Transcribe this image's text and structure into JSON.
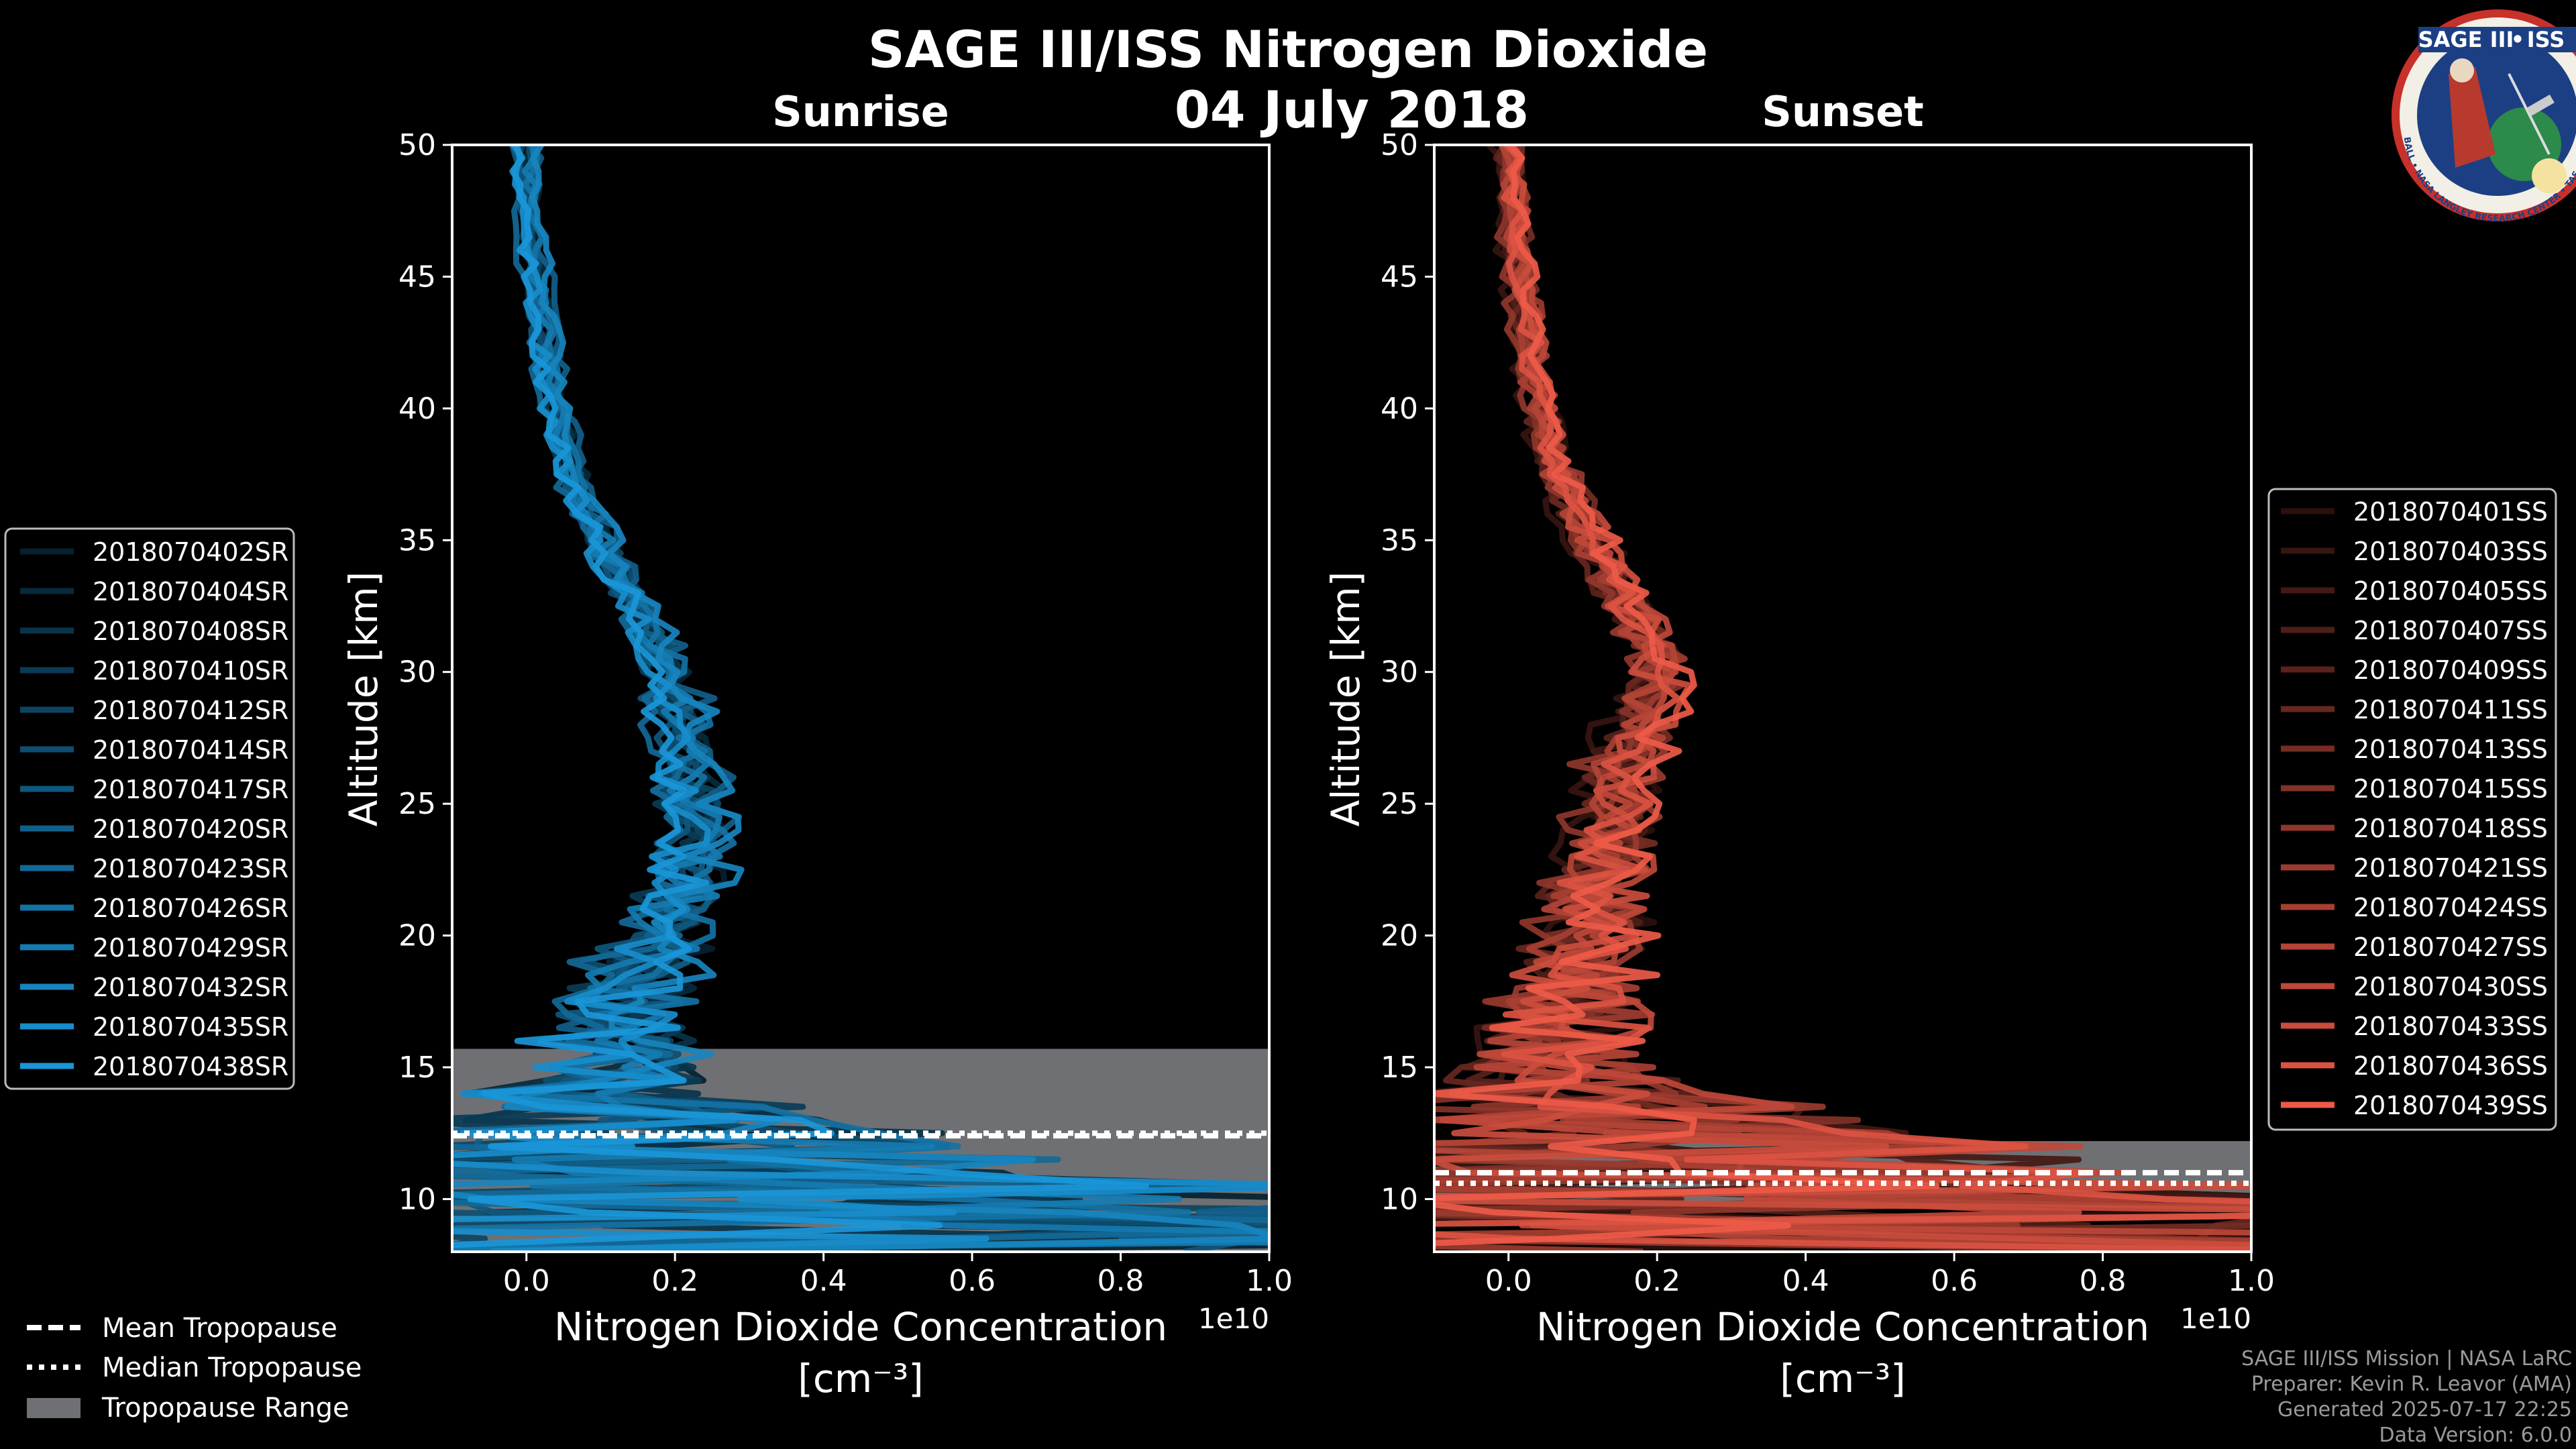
{
  "title": "SAGE III/ISS Nitrogen Dioxide",
  "date": "04 July 2018",
  "logo": {
    "top": "SAGE III",
    "dot": "•",
    "right": "ISS",
    "ring": "BALL • NASA LANGLEY RESEARCH CENTER • TAS-I • ESA"
  },
  "footer": {
    "line1": "SAGE III/ISS Mission | NASA LaRC",
    "line2": "Preparer: Kevin R. Leavor (AMA)",
    "line3": "Generated 2025-07-17 22:25",
    "line4": "Data Version: 6.0.0"
  },
  "legend_bottom": [
    {
      "style": "dashed",
      "label": "Mean Tropopause"
    },
    {
      "style": "dotted",
      "label": "Median Tropopause"
    },
    {
      "style": "patch",
      "label": "Tropopause Range"
    }
  ],
  "colors": {
    "sunrise": "#1a96d8",
    "sunset": "#ee5a48",
    "range": "#6e7074"
  },
  "chart_data": [
    {
      "type": "line",
      "panel": "sunrise",
      "title": "Sunrise",
      "xlabel": "Nitrogen Dioxide Concentration",
      "xlabel_unit": "[cm⁻³]",
      "ylabel": "Altitude [km]",
      "x_scale_label": "1e10",
      "xlim": [
        -0.1,
        1.0
      ],
      "ylim": [
        8,
        50
      ],
      "xticks": [
        0.0,
        0.2,
        0.4,
        0.6,
        0.8,
        1.0
      ],
      "xtick_labels": [
        "0.0",
        "0.2",
        "0.4",
        "0.6",
        "0.8",
        "1.0"
      ],
      "yticks": [
        10,
        15,
        20,
        25,
        30,
        35,
        40,
        45,
        50
      ],
      "tropopause_range": [
        8,
        15.7
      ],
      "tropopause_mean": 12.4,
      "tropopause_median": 12.5,
      "profile_shape": {
        "altitudes": [
          8,
          9,
          10,
          11,
          12,
          13,
          14,
          15,
          16,
          17,
          18,
          19,
          20,
          21,
          22,
          23,
          24,
          25,
          26,
          27,
          28,
          29,
          30,
          31,
          32,
          33,
          34,
          35,
          36,
          37,
          38,
          39,
          40,
          42,
          44,
          46,
          48,
          50
        ],
        "mean": [
          0.3,
          0.28,
          0.24,
          0.2,
          0.14,
          0.1,
          0.09,
          0.1,
          0.11,
          0.13,
          0.14,
          0.16,
          0.18,
          0.2,
          0.22,
          0.23,
          0.23,
          0.225,
          0.22,
          0.215,
          0.21,
          0.2,
          0.19,
          0.18,
          0.16,
          0.14,
          0.12,
          0.1,
          0.085,
          0.07,
          0.06,
          0.05,
          0.04,
          0.03,
          0.02,
          0.01,
          0.005,
          0.0
        ],
        "spread": [
          1.2,
          1.0,
          0.8,
          0.6,
          0.35,
          0.22,
          0.18,
          0.14,
          0.12,
          0.1,
          0.09,
          0.08,
          0.07,
          0.06,
          0.05,
          0.045,
          0.04,
          0.04,
          0.035,
          0.03,
          0.03,
          0.03,
          0.028,
          0.026,
          0.025,
          0.024,
          0.022,
          0.02,
          0.018,
          0.016,
          0.015,
          0.014,
          0.013,
          0.012,
          0.012,
          0.012,
          0.01,
          0.01
        ]
      },
      "series": [
        {
          "name": "2018070402SR",
          "shade": 0.22
        },
        {
          "name": "2018070404SR",
          "shade": 0.28
        },
        {
          "name": "2018070408SR",
          "shade": 0.34
        },
        {
          "name": "2018070410SR",
          "shade": 0.4
        },
        {
          "name": "2018070412SR",
          "shade": 0.46
        },
        {
          "name": "2018070414SR",
          "shade": 0.52
        },
        {
          "name": "2018070417SR",
          "shade": 0.58
        },
        {
          "name": "2018070420SR",
          "shade": 0.64
        },
        {
          "name": "2018070423SR",
          "shade": 0.7
        },
        {
          "name": "2018070426SR",
          "shade": 0.76
        },
        {
          "name": "2018070429SR",
          "shade": 0.82
        },
        {
          "name": "2018070432SR",
          "shade": 0.88
        },
        {
          "name": "2018070435SR",
          "shade": 0.94
        },
        {
          "name": "2018070438SR",
          "shade": 1.0
        }
      ]
    },
    {
      "type": "line",
      "panel": "sunset",
      "title": "Sunset",
      "xlabel": "Nitrogen Dioxide Concentration",
      "xlabel_unit": "[cm⁻³]",
      "ylabel": "Altitude [km]",
      "x_scale_label": "1e10",
      "xlim": [
        -0.1,
        1.0
      ],
      "ylim": [
        8,
        50
      ],
      "xticks": [
        0.0,
        0.2,
        0.4,
        0.6,
        0.8,
        1.0
      ],
      "xtick_labels": [
        "0.0",
        "0.2",
        "0.4",
        "0.6",
        "0.8",
        "1.0"
      ],
      "yticks": [
        10,
        15,
        20,
        25,
        30,
        35,
        40,
        45,
        50
      ],
      "tropopause_range": [
        9.8,
        12.2
      ],
      "tropopause_mean": 11.0,
      "tropopause_median": 10.6,
      "profile_shape": {
        "altitudes": [
          8,
          9,
          10,
          11,
          12,
          13,
          14,
          15,
          16,
          17,
          18,
          19,
          20,
          21,
          22,
          23,
          24,
          25,
          26,
          27,
          28,
          29,
          30,
          31,
          32,
          33,
          34,
          35,
          36,
          37,
          38,
          39,
          40,
          42,
          44,
          46,
          48,
          50
        ],
        "mean": [
          0.4,
          0.35,
          0.28,
          0.2,
          0.15,
          0.1,
          0.07,
          0.06,
          0.06,
          0.07,
          0.08,
          0.09,
          0.1,
          0.11,
          0.12,
          0.13,
          0.14,
          0.14,
          0.145,
          0.16,
          0.18,
          0.19,
          0.2,
          0.19,
          0.17,
          0.15,
          0.13,
          0.11,
          0.09,
          0.075,
          0.06,
          0.05,
          0.04,
          0.03,
          0.02,
          0.01,
          0.005,
          0.0
        ],
        "spread": [
          1.0,
          0.9,
          0.7,
          0.5,
          0.45,
          0.3,
          0.2,
          0.15,
          0.13,
          0.11,
          0.1,
          0.09,
          0.08,
          0.07,
          0.06,
          0.055,
          0.05,
          0.05,
          0.048,
          0.045,
          0.04,
          0.04,
          0.04,
          0.038,
          0.035,
          0.032,
          0.03,
          0.028,
          0.026,
          0.024,
          0.022,
          0.02,
          0.018,
          0.016,
          0.015,
          0.014,
          0.013,
          0.012
        ]
      },
      "series": [
        {
          "name": "2018070401SS",
          "shade": 0.18
        },
        {
          "name": "2018070403SS",
          "shade": 0.23
        },
        {
          "name": "2018070405SS",
          "shade": 0.28
        },
        {
          "name": "2018070407SS",
          "shade": 0.33
        },
        {
          "name": "2018070409SS",
          "shade": 0.38
        },
        {
          "name": "2018070411SS",
          "shade": 0.43
        },
        {
          "name": "2018070413SS",
          "shade": 0.49
        },
        {
          "name": "2018070415SS",
          "shade": 0.55
        },
        {
          "name": "2018070418SS",
          "shade": 0.6
        },
        {
          "name": "2018070421SS",
          "shade": 0.65
        },
        {
          "name": "2018070424SS",
          "shade": 0.7
        },
        {
          "name": "2018070427SS",
          "shade": 0.75
        },
        {
          "name": "2018070430SS",
          "shade": 0.8
        },
        {
          "name": "2018070433SS",
          "shade": 0.85
        },
        {
          "name": "2018070436SS",
          "shade": 0.92
        },
        {
          "name": "2018070439SS",
          "shade": 1.0
        }
      ]
    }
  ]
}
